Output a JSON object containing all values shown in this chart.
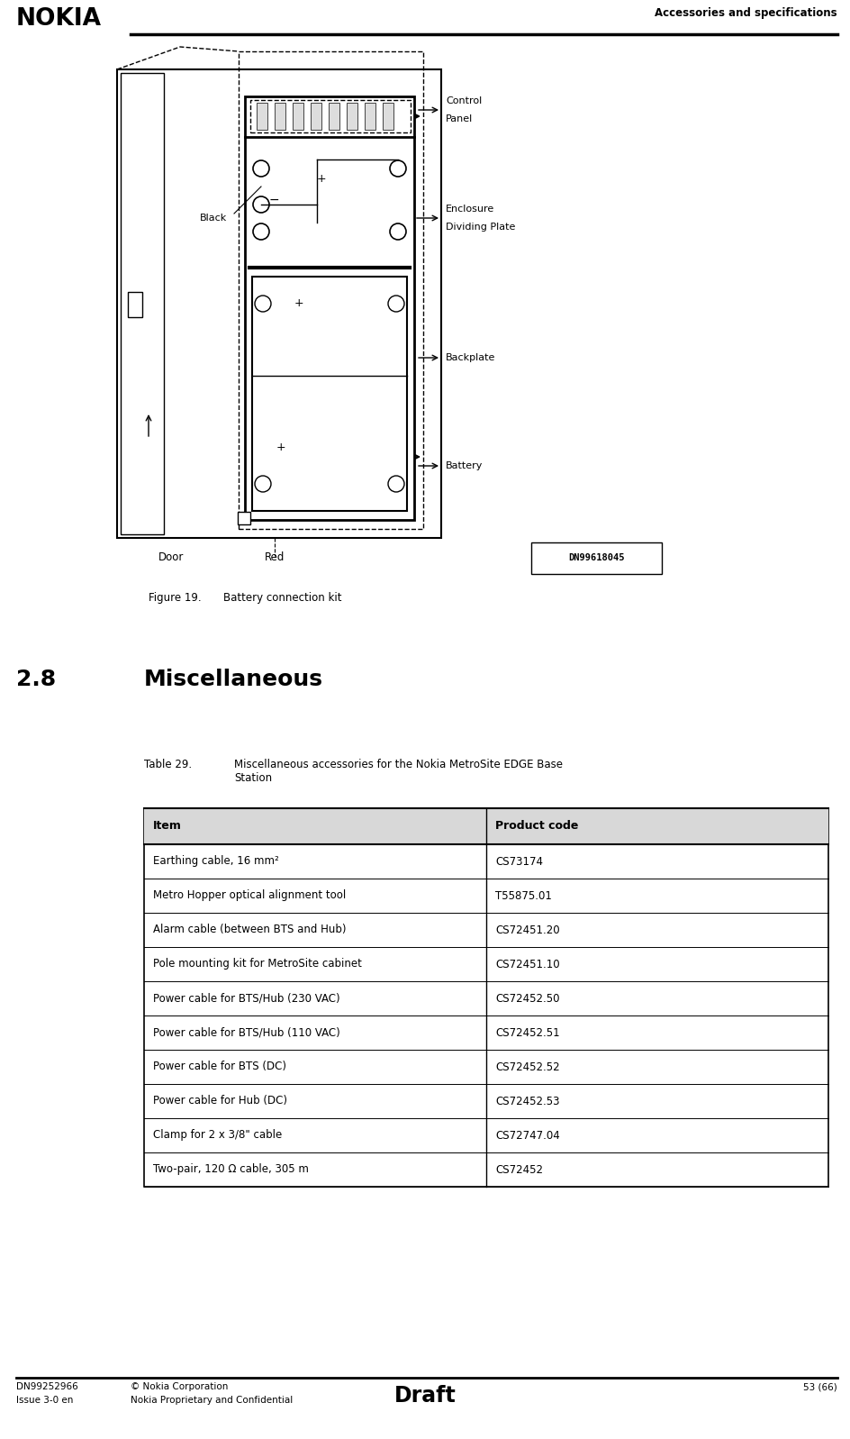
{
  "page_width": 9.44,
  "page_height": 15.97,
  "bg_color": "#ffffff",
  "header_text_left": "NOKIA",
  "header_text_right": "Accessories and specifications",
  "figure_caption_bold": "Figure 19.",
  "figure_caption_normal": "    Battery connection kit",
  "section_number": "2.8",
  "section_title": "Miscellaneous",
  "table_title_label": "Table 29.",
  "table_title_text": "Miscellaneous accessories for the Nokia MetroSite EDGE Base\nStation",
  "table_headers": [
    "Item",
    "Product code"
  ],
  "table_rows": [
    [
      "Earthing cable, 16 mm²",
      "CS73174"
    ],
    [
      "Metro Hopper optical alignment tool",
      "T55875.01"
    ],
    [
      "Alarm cable (between BTS and Hub)",
      "CS72451.20"
    ],
    [
      "Pole mounting kit for MetroSite cabinet",
      "CS72451.10"
    ],
    [
      "Power cable for BTS/Hub (230 VAC)",
      "CS72452.50"
    ],
    [
      "Power cable for BTS/Hub (110 VAC)",
      "CS72452.51"
    ],
    [
      "Power cable for BTS (DC)",
      "CS72452.52"
    ],
    [
      "Power cable for Hub (DC)",
      "CS72452.53"
    ],
    [
      "Clamp for 2 x 3/8\" cable",
      "CS72747.04"
    ],
    [
      "Two-pair, 120 Ω cable, 305 m",
      "CS72452"
    ]
  ],
  "footer_left_line1": "DN99252966",
  "footer_left_line2": "Issue 3-0 en",
  "footer_center_line1": "© Nokia Corporation",
  "footer_center_line2": "Nokia Proprietary and Confidential",
  "footer_draft": "Draft",
  "footer_right": "53 (66)",
  "diagram_ref": "DN99618045"
}
